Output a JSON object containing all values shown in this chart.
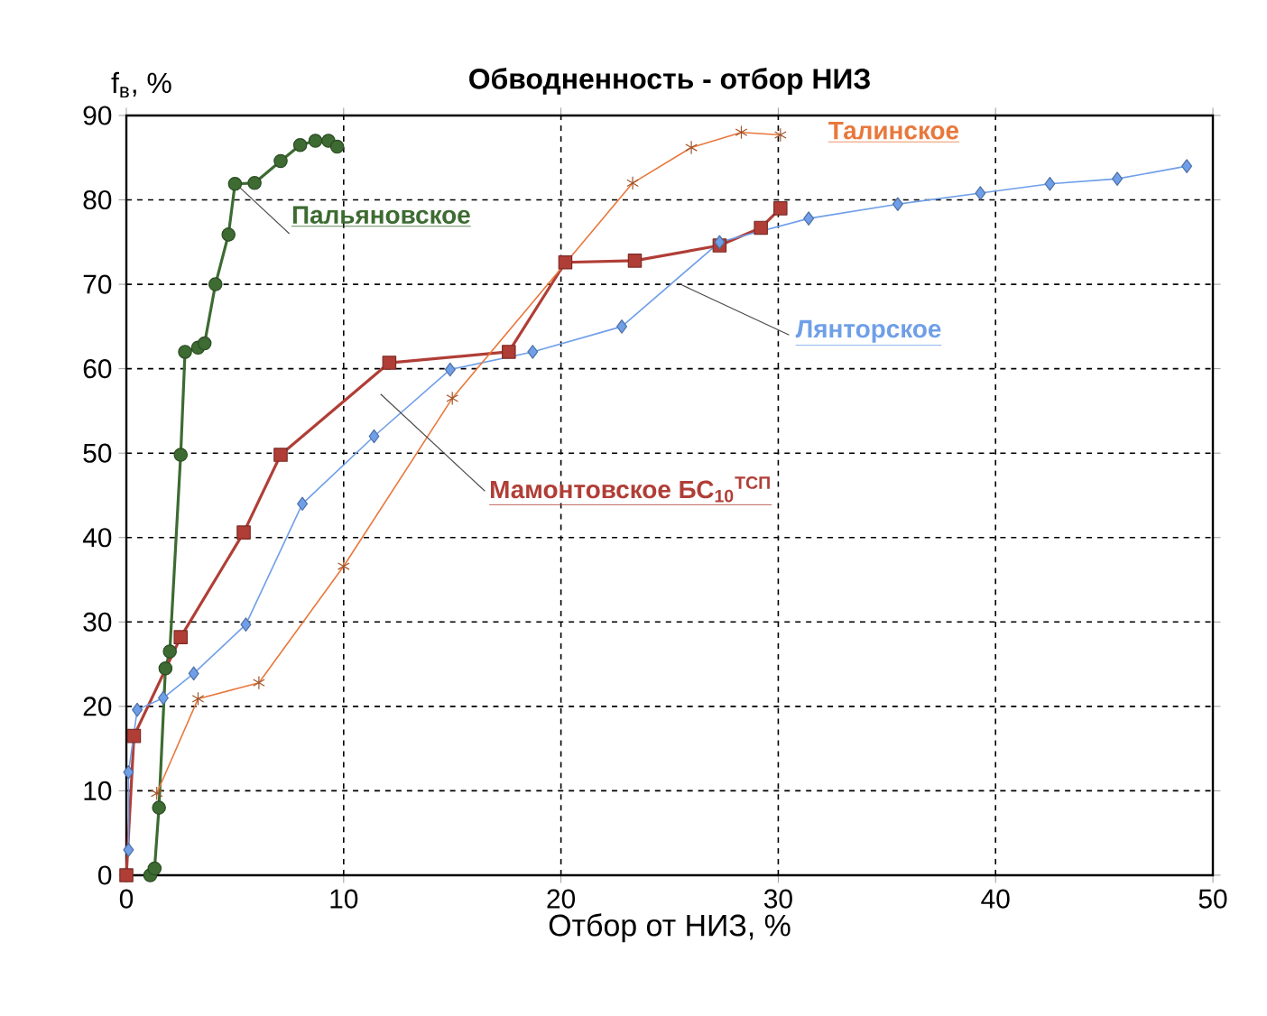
{
  "chart_data": {
    "type": "line",
    "title": "Обводненность - отбор НИЗ",
    "xlabel": "Отбор от НИЗ, %",
    "ylabel": "f$_{в}$, %",
    "xlim": [
      0,
      50
    ],
    "ylim": [
      0,
      90
    ],
    "xticks": [
      0,
      10,
      20,
      30,
      40,
      50
    ],
    "yticks": [
      0,
      10,
      20,
      30,
      40,
      50,
      60,
      70,
      80,
      90
    ],
    "grid": true,
    "legend": false,
    "line_style": "solid",
    "series": [
      {
        "name": "Пальяновское",
        "color": "#3d6b32",
        "marker": "circle",
        "x": [
          1.1,
          1.3,
          1.5,
          1.8,
          2.0,
          2.5,
          2.7,
          3.3,
          3.6,
          4.1,
          4.7,
          5.0,
          5.9,
          7.1,
          8.0,
          8.7,
          9.3,
          9.7
        ],
        "values": [
          0,
          0.8,
          8,
          24.5,
          26.5,
          49.8,
          62,
          62.5,
          63,
          70,
          75.9,
          81.9,
          82,
          84.6,
          86.5,
          87,
          87,
          86.3
        ]
      },
      {
        "name": "Мамонтовское  БС$_{10}$$^{ТСП}$",
        "color": "#b03e36",
        "marker": "square",
        "x": [
          0,
          0.35,
          2.5,
          5.4,
          7.1,
          12.1,
          17.6,
          20.2,
          23.4,
          27.3,
          29.2,
          30.1
        ],
        "values": [
          0,
          16.5,
          28.2,
          40.6,
          49.8,
          60.7,
          62,
          72.6,
          72.8,
          74.6,
          76.7,
          79
        ]
      },
      {
        "name": "Лянторское",
        "color": "#6f9fe8",
        "marker": "diamond",
        "x": [
          0.1,
          0.1,
          0.5,
          1.7,
          3.1,
          5.5,
          8.1,
          11.4,
          14.9,
          18.7,
          22.8,
          27.3,
          31.4,
          35.5,
          39.3,
          42.5,
          45.6,
          48.8
        ],
        "values": [
          3,
          12.2,
          19.6,
          21,
          23.9,
          29.7,
          44,
          52,
          59.9,
          62,
          65,
          75,
          77.8,
          79.5,
          80.8,
          81.9,
          82.5,
          84
        ]
      },
      {
        "name": "Талинское",
        "color": "#e8783c",
        "marker": "cross",
        "x": [
          1.4,
          3.3,
          6.1,
          10,
          15,
          23.3,
          26,
          28.3,
          30.1
        ],
        "values": [
          9.7,
          20.9,
          22.8,
          36.6,
          56.5,
          82,
          86.2,
          88,
          87.7
        ]
      }
    ]
  }
}
